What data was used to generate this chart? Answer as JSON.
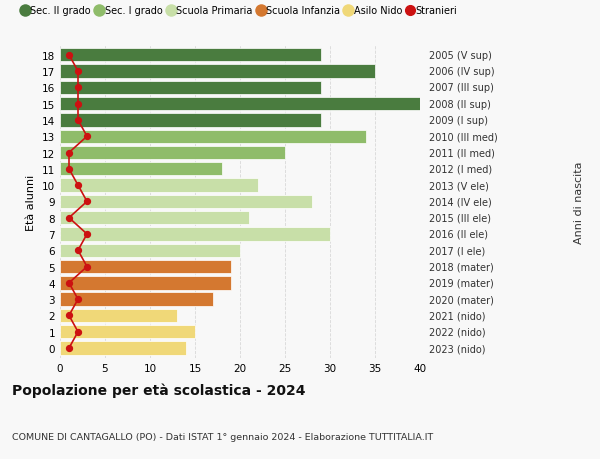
{
  "ages": [
    18,
    17,
    16,
    15,
    14,
    13,
    12,
    11,
    10,
    9,
    8,
    7,
    6,
    5,
    4,
    3,
    2,
    1,
    0
  ],
  "right_labels": [
    "2005 (V sup)",
    "2006 (IV sup)",
    "2007 (III sup)",
    "2008 (II sup)",
    "2009 (I sup)",
    "2010 (III med)",
    "2011 (II med)",
    "2012 (I med)",
    "2013 (V ele)",
    "2014 (IV ele)",
    "2015 (III ele)",
    "2016 (II ele)",
    "2017 (I ele)",
    "2018 (mater)",
    "2019 (mater)",
    "2020 (mater)",
    "2021 (nido)",
    "2022 (nido)",
    "2023 (nido)"
  ],
  "bar_values": [
    29,
    35,
    29,
    41,
    29,
    34,
    25,
    18,
    22,
    28,
    21,
    30,
    20,
    19,
    19,
    17,
    13,
    15,
    14
  ],
  "bar_colors": [
    "#4a7c3f",
    "#4a7c3f",
    "#4a7c3f",
    "#4a7c3f",
    "#4a7c3f",
    "#8fbc6a",
    "#8fbc6a",
    "#8fbc6a",
    "#c8dfa8",
    "#c8dfa8",
    "#c8dfa8",
    "#c8dfa8",
    "#c8dfa8",
    "#d47830",
    "#d47830",
    "#d47830",
    "#f0d878",
    "#f0d878",
    "#f0d878"
  ],
  "stranieri_values": [
    1,
    2,
    2,
    2,
    2,
    3,
    1,
    1,
    2,
    3,
    1,
    3,
    2,
    3,
    1,
    2,
    1,
    2,
    1
  ],
  "stranieri_color": "#cc1111",
  "legend_labels": [
    "Sec. II grado",
    "Sec. I grado",
    "Scuola Primaria",
    "Scuola Infanzia",
    "Asilo Nido",
    "Stranieri"
  ],
  "legend_colors": [
    "#4a7c3f",
    "#8fbc6a",
    "#c8dfa8",
    "#d47830",
    "#f0d878",
    "#cc1111"
  ],
  "title": "Popolazione per età scolastica - 2024",
  "subtitle": "COMUNE DI CANTAGALLO (PO) - Dati ISTAT 1° gennaio 2024 - Elaborazione TUTTITALIA.IT",
  "ylabel_left": "Età alunni",
  "ylabel_right": "Anni di nascita",
  "xlim": [
    0,
    40
  ],
  "xticks": [
    0,
    5,
    10,
    15,
    20,
    25,
    30,
    35,
    40
  ],
  "background_color": "#f8f8f8",
  "grid_color": "#d8d8d8"
}
